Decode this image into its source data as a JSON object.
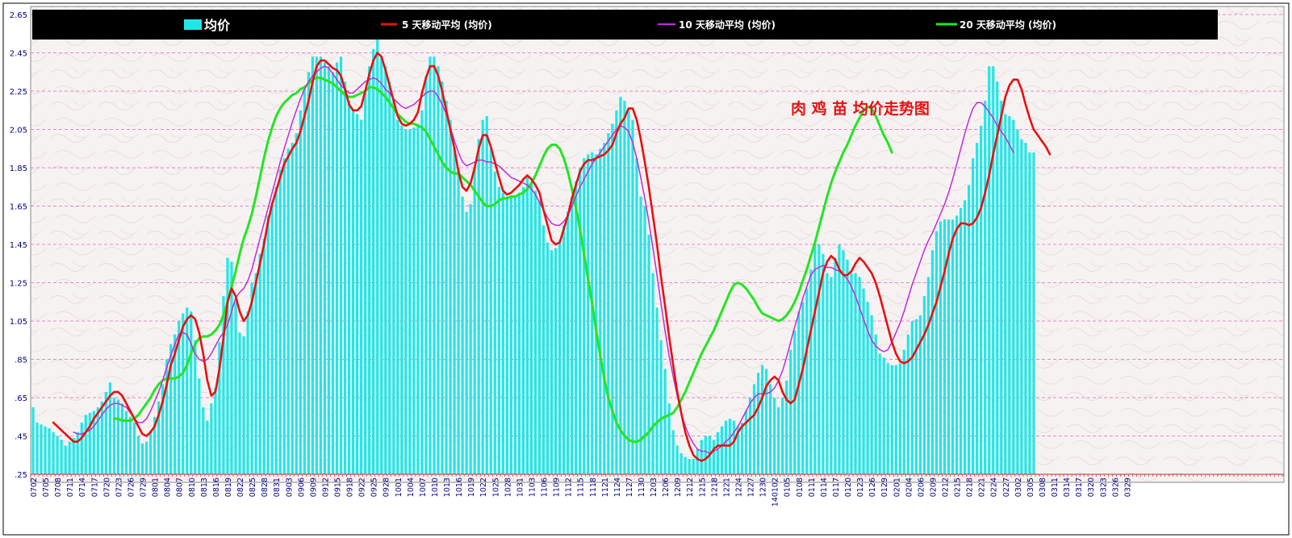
{
  "chart_data": {
    "type": "bar",
    "title": "肉 鸡 苗 均价走势图",
    "xlabel": "",
    "ylabel": "",
    "ylim": [
      0.25,
      2.65
    ],
    "y_ticks": [
      ".25",
      ".45",
      ".65",
      ".85",
      "1.05",
      "1.25",
      "1.45",
      "1.65",
      "1.85",
      "2.05",
      "2.25",
      "2.45",
      "2.65"
    ],
    "grid": "horizontal dashed",
    "legend_placement": "top (black band)",
    "legend": [
      {
        "key": "price",
        "label": "均价"
      },
      {
        "key": "ma5",
        "label": "5 天移动平均 (均价)"
      },
      {
        "key": "ma10",
        "label": "10 天移动平均 (均价)"
      },
      {
        "key": "ma20",
        "label": "20 天移动平均 (均价)"
      }
    ],
    "x_tick_labels": [
      "0702",
      "0705",
      "0708",
      "0711",
      "0714",
      "0717",
      "0720",
      "0723",
      "0726",
      "0729",
      "0801",
      "0804",
      "0807",
      "0810",
      "0813",
      "0816",
      "0819",
      "0822",
      "0825",
      "0828",
      "0831",
      "0903",
      "0906",
      "0909",
      "0912",
      "0915",
      "0918",
      "0922",
      "0925",
      "0928",
      "1001",
      "1004",
      "1007",
      "1010",
      "1013",
      "1016",
      "1019",
      "1022",
      "1025",
      "1028",
      "1031",
      "1103",
      "1106",
      "1109",
      "1112",
      "1115",
      "1118",
      "1121",
      "1124",
      "1127",
      "1130",
      "1203",
      "1206",
      "1209",
      "1212",
      "1215",
      "1218",
      "1221",
      "1224",
      "1227",
      "1230",
      "140102",
      "0105",
      "0108",
      "0111",
      "0114",
      "0117",
      "0120",
      "0123",
      "0126",
      "0129",
      "0201",
      "0204",
      "0206",
      "0209",
      "0212",
      "0215",
      "0218",
      "0221",
      "0224",
      "0227",
      "0302",
      "0305",
      "0308",
      "0311",
      "0314",
      "0317",
      "0320",
      "0323",
      "0326",
      "0329"
    ],
    "price": [
      0.6,
      0.52,
      0.51,
      0.5,
      0.49,
      0.47,
      0.45,
      0.43,
      0.4,
      0.42,
      0.44,
      0.47,
      0.52,
      0.56,
      0.57,
      0.58,
      0.6,
      0.63,
      0.68,
      0.73,
      0.65,
      0.64,
      0.62,
      0.58,
      0.55,
      0.52,
      0.45,
      0.41,
      0.42,
      0.48,
      0.55,
      0.63,
      0.72,
      0.85,
      0.93,
      0.98,
      1.05,
      1.09,
      1.12,
      1.1,
      0.95,
      0.75,
      0.6,
      0.53,
      0.62,
      0.7,
      0.94,
      1.18,
      1.38,
      1.36,
      1.15,
      0.99,
      0.97,
      1.1,
      1.25,
      1.3,
      1.4,
      1.48,
      1.6,
      1.67,
      1.75,
      1.84,
      1.9,
      1.95,
      1.98,
      2.03,
      2.15,
      2.26,
      2.35,
      2.43,
      2.43,
      2.43,
      2.4,
      2.38,
      2.35,
      2.4,
      2.43,
      2.3,
      2.2,
      2.15,
      2.13,
      2.1,
      2.24,
      2.38,
      2.47,
      2.52,
      2.43,
      2.38,
      2.3,
      2.2,
      2.1,
      2.07,
      2.05,
      2.05,
      2.06,
      2.08,
      2.15,
      2.33,
      2.43,
      2.43,
      2.38,
      2.3,
      2.2,
      2.1,
      1.95,
      1.85,
      1.7,
      1.62,
      1.66,
      1.85,
      2.0,
      2.1,
      2.12,
      1.95,
      1.83,
      1.75,
      1.72,
      1.7,
      1.7,
      1.7,
      1.72,
      1.75,
      1.8,
      1.77,
      1.73,
      1.68,
      1.55,
      1.46,
      1.42,
      1.43,
      1.47,
      1.55,
      1.62,
      1.7,
      1.78,
      1.85,
      1.9,
      1.92,
      1.93,
      1.92,
      1.95,
      1.98,
      2.03,
      2.08,
      2.15,
      2.22,
      2.2,
      2.15,
      2.1,
      1.9,
      1.7,
      1.65,
      1.5,
      1.3,
      1.12,
      0.95,
      0.8,
      0.62,
      0.48,
      0.4,
      0.36,
      0.34,
      0.33,
      0.33,
      0.38,
      0.43,
      0.45,
      0.45,
      0.43,
      0.47,
      0.5,
      0.53,
      0.54,
      0.53,
      0.5,
      0.52,
      0.58,
      0.65,
      0.72,
      0.78,
      0.82,
      0.8,
      0.72,
      0.65,
      0.6,
      0.65,
      0.74,
      0.9,
      1.0,
      1.1,
      1.15,
      1.22,
      1.32,
      1.45,
      1.45,
      1.4,
      1.3,
      1.28,
      1.38,
      1.45,
      1.42,
      1.37,
      1.3,
      1.3,
      1.28,
      1.22,
      1.15,
      1.08,
      0.98,
      0.88,
      0.86,
      0.83,
      0.82,
      0.82,
      0.83,
      0.9,
      0.98,
      1.05,
      1.06,
      1.08,
      1.18,
      1.28,
      1.42,
      1.52,
      1.57,
      1.58,
      1.58,
      1.58,
      1.6,
      1.64,
      1.68,
      1.76,
      1.9,
      1.98,
      2.07,
      2.2,
      2.38,
      2.38,
      2.3,
      2.2,
      2.13,
      2.12,
      2.1,
      2.05,
      2.0,
      1.98,
      1.93,
      1.93
    ],
    "ma5": [
      null,
      null,
      null,
      null,
      null,
      0.52,
      0.5,
      0.48,
      0.46,
      0.44,
      0.42,
      0.42,
      0.44,
      0.47,
      0.5,
      0.54,
      0.57,
      0.6,
      0.63,
      0.66,
      0.68,
      0.68,
      0.66,
      0.62,
      0.58,
      0.54,
      0.5,
      0.46,
      0.45,
      0.47,
      0.5,
      0.56,
      0.63,
      0.72,
      0.82,
      0.88,
      0.95,
      1.02,
      1.06,
      1.08,
      1.06,
      0.99,
      0.88,
      0.74,
      0.66,
      0.68,
      0.8,
      0.96,
      1.15,
      1.22,
      1.18,
      1.1,
      1.05,
      1.08,
      1.15,
      1.25,
      1.35,
      1.45,
      1.57,
      1.66,
      1.73,
      1.8,
      1.87,
      1.91,
      1.95,
      1.98,
      2.04,
      2.12,
      2.2,
      2.3,
      2.38,
      2.41,
      2.41,
      2.39,
      2.37,
      2.36,
      2.33,
      2.26,
      2.18,
      2.15,
      2.15,
      2.17,
      2.25,
      2.34,
      2.41,
      2.45,
      2.43,
      2.36,
      2.28,
      2.2,
      2.12,
      2.08,
      2.07,
      2.08,
      2.1,
      2.14,
      2.24,
      2.32,
      2.38,
      2.38,
      2.33,
      2.25,
      2.15,
      2.05,
      1.95,
      1.83,
      1.75,
      1.73,
      1.77,
      1.85,
      1.95,
      2.02,
      2.02,
      1.96,
      1.88,
      1.8,
      1.73,
      1.71,
      1.72,
      1.74,
      1.76,
      1.79,
      1.81,
      1.79,
      1.76,
      1.72,
      1.63,
      1.55,
      1.47,
      1.45,
      1.46,
      1.53,
      1.6,
      1.69,
      1.76,
      1.83,
      1.87,
      1.89,
      1.89,
      1.9,
      1.91,
      1.92,
      1.94,
      1.97,
      2.03,
      2.08,
      2.11,
      2.16,
      2.16,
      2.1,
      2.0,
      1.88,
      1.75,
      1.6,
      1.45,
      1.28,
      1.13,
      0.97,
      0.82,
      0.68,
      0.57,
      0.47,
      0.4,
      0.35,
      0.33,
      0.32,
      0.33,
      0.35,
      0.38,
      0.4,
      0.4,
      0.4,
      0.4,
      0.42,
      0.47,
      0.5,
      0.52,
      0.54,
      0.56,
      0.6,
      0.65,
      0.71,
      0.74,
      0.76,
      0.74,
      0.68,
      0.64,
      0.62,
      0.64,
      0.72,
      0.8,
      0.9,
      1.0,
      1.1,
      1.2,
      1.3,
      1.36,
      1.39,
      1.37,
      1.32,
      1.29,
      1.29,
      1.31,
      1.35,
      1.38,
      1.36,
      1.33,
      1.3,
      1.25,
      1.18,
      1.1,
      1.02,
      0.94,
      0.88,
      0.84,
      0.83,
      0.84,
      0.86,
      0.9,
      0.94,
      0.98,
      1.03,
      1.09,
      1.15,
      1.23,
      1.31,
      1.4,
      1.48,
      1.53,
      1.56,
      1.56,
      1.55,
      1.56,
      1.59,
      1.64,
      1.72,
      1.81,
      1.92,
      2.02,
      2.12,
      2.22,
      2.28,
      2.31,
      2.31,
      2.26,
      2.18,
      2.11,
      2.05,
      2.02,
      1.99,
      1.96,
      1.92
    ],
    "ma10": [
      null,
      null,
      null,
      null,
      null,
      null,
      null,
      null,
      null,
      null,
      0.47,
      0.46,
      0.46,
      0.47,
      0.48,
      0.5,
      0.53,
      0.56,
      0.59,
      0.61,
      0.62,
      0.62,
      0.61,
      0.6,
      0.57,
      0.54,
      0.52,
      0.52,
      0.54,
      0.58,
      0.63,
      0.68,
      0.74,
      0.81,
      0.87,
      0.93,
      0.98,
      0.99,
      0.98,
      0.93,
      0.88,
      0.85,
      0.84,
      0.85,
      0.88,
      0.92,
      0.96,
      0.99,
      1.03,
      1.1,
      1.17,
      1.2,
      1.22,
      1.26,
      1.32,
      1.4,
      1.48,
      1.56,
      1.64,
      1.72,
      1.8,
      1.88,
      1.95,
      2.02,
      2.09,
      2.15,
      2.21,
      2.26,
      2.3,
      2.33,
      2.35,
      2.37,
      2.38,
      2.37,
      2.34,
      2.31,
      2.28,
      2.26,
      2.24,
      2.24,
      2.26,
      2.28,
      2.3,
      2.31,
      2.32,
      2.31,
      2.29,
      2.26,
      2.24,
      2.21,
      2.19,
      2.17,
      2.16,
      2.17,
      2.18,
      2.2,
      2.22,
      2.24,
      2.25,
      2.25,
      2.22,
      2.18,
      2.13,
      2.06,
      1.99,
      1.93,
      1.88,
      1.86,
      1.87,
      1.88,
      1.89,
      1.89,
      1.88,
      1.88,
      1.87,
      1.86,
      1.84,
      1.82,
      1.8,
      1.79,
      1.78,
      1.77,
      1.76,
      1.74,
      1.71,
      1.67,
      1.63,
      1.59,
      1.56,
      1.55,
      1.55,
      1.57,
      1.6,
      1.65,
      1.7,
      1.75,
      1.79,
      1.83,
      1.87,
      1.9,
      1.93,
      1.96,
      1.99,
      2.02,
      2.05,
      2.07,
      2.06,
      2.04,
      1.98,
      1.9,
      1.8,
      1.69,
      1.57,
      1.43,
      1.29,
      1.14,
      1.0,
      0.87,
      0.76,
      0.66,
      0.57,
      0.5,
      0.45,
      0.41,
      0.38,
      0.37,
      0.37,
      0.36,
      0.37,
      0.38,
      0.4,
      0.42,
      0.44,
      0.47,
      0.5,
      0.54,
      0.58,
      0.62,
      0.65,
      0.67,
      0.67,
      0.67,
      0.68,
      0.7,
      0.74,
      0.79,
      0.86,
      0.94,
      1.02,
      1.09,
      1.17,
      1.23,
      1.29,
      1.32,
      1.33,
      1.34,
      1.33,
      1.33,
      1.32,
      1.31,
      1.29,
      1.27,
      1.23,
      1.18,
      1.12,
      1.06,
      1.0,
      0.95,
      0.92,
      0.9,
      0.89,
      0.9,
      0.94,
      0.99,
      1.04,
      1.1,
      1.17,
      1.24,
      1.3,
      1.36,
      1.42,
      1.47,
      1.51,
      1.56,
      1.61,
      1.66,
      1.72,
      1.79,
      1.87,
      1.95,
      2.03,
      2.1,
      2.16,
      2.19,
      2.19,
      2.17,
      2.14,
      2.11,
      2.07,
      2.04,
      2.01,
      1.97,
      1.93
    ],
    "ma20": [
      null,
      null,
      null,
      null,
      null,
      null,
      null,
      null,
      null,
      null,
      null,
      null,
      null,
      null,
      null,
      null,
      null,
      null,
      null,
      null,
      0.54,
      0.54,
      0.53,
      0.53,
      0.53,
      0.54,
      0.56,
      0.59,
      0.62,
      0.65,
      0.69,
      0.72,
      0.74,
      0.75,
      0.75,
      0.75,
      0.76,
      0.78,
      0.82,
      0.88,
      0.93,
      0.96,
      0.97,
      0.97,
      0.98,
      1.0,
      1.03,
      1.08,
      1.15,
      1.23,
      1.31,
      1.4,
      1.48,
      1.54,
      1.61,
      1.7,
      1.8,
      1.9,
      1.99,
      2.06,
      2.12,
      2.16,
      2.19,
      2.21,
      2.23,
      2.24,
      2.26,
      2.27,
      2.29,
      2.31,
      2.32,
      2.32,
      2.31,
      2.3,
      2.29,
      2.27,
      2.25,
      2.23,
      2.22,
      2.22,
      2.23,
      2.24,
      2.25,
      2.27,
      2.27,
      2.26,
      2.24,
      2.22,
      2.19,
      2.16,
      2.13,
      2.11,
      2.09,
      2.08,
      2.08,
      2.07,
      2.06,
      2.04,
      2.0,
      1.96,
      1.92,
      1.88,
      1.85,
      1.83,
      1.82,
      1.82,
      1.8,
      1.78,
      1.76,
      1.73,
      1.7,
      1.67,
      1.65,
      1.65,
      1.66,
      1.68,
      1.69,
      1.69,
      1.7,
      1.7,
      1.71,
      1.72,
      1.74,
      1.77,
      1.81,
      1.86,
      1.91,
      1.95,
      1.97,
      1.97,
      1.95,
      1.9,
      1.83,
      1.74,
      1.64,
      1.53,
      1.4,
      1.27,
      1.14,
      1.0,
      0.87,
      0.75,
      0.65,
      0.58,
      0.52,
      0.48,
      0.45,
      0.43,
      0.42,
      0.42,
      0.43,
      0.45,
      0.47,
      0.5,
      0.52,
      0.54,
      0.55,
      0.56,
      0.57,
      0.6,
      0.64,
      0.68,
      0.73,
      0.78,
      0.83,
      0.88,
      0.92,
      0.96,
      1.0,
      1.05,
      1.1,
      1.15,
      1.2,
      1.24,
      1.25,
      1.24,
      1.22,
      1.19,
      1.16,
      1.12,
      1.09,
      1.08,
      1.07,
      1.06,
      1.05,
      1.06,
      1.08,
      1.11,
      1.15,
      1.2,
      1.26,
      1.32,
      1.39,
      1.46,
      1.54,
      1.62,
      1.7,
      1.77,
      1.83,
      1.88,
      1.93,
      1.97,
      2.02,
      2.07,
      2.11,
      2.15,
      2.17,
      2.16,
      2.12,
      2.07,
      2.02,
      1.98,
      1.93
    ]
  },
  "colors": {
    "bar": "#22e6e6",
    "ma5": "#e81010",
    "ma10": "#c02cd8",
    "ma20": "#22e622",
    "grid": "#e060c0",
    "axis_text": "#000080",
    "title": "#e81010",
    "legend_bg": "#000000",
    "legend_text": "#ffffff",
    "plot_bg": "#f7f1f1"
  }
}
